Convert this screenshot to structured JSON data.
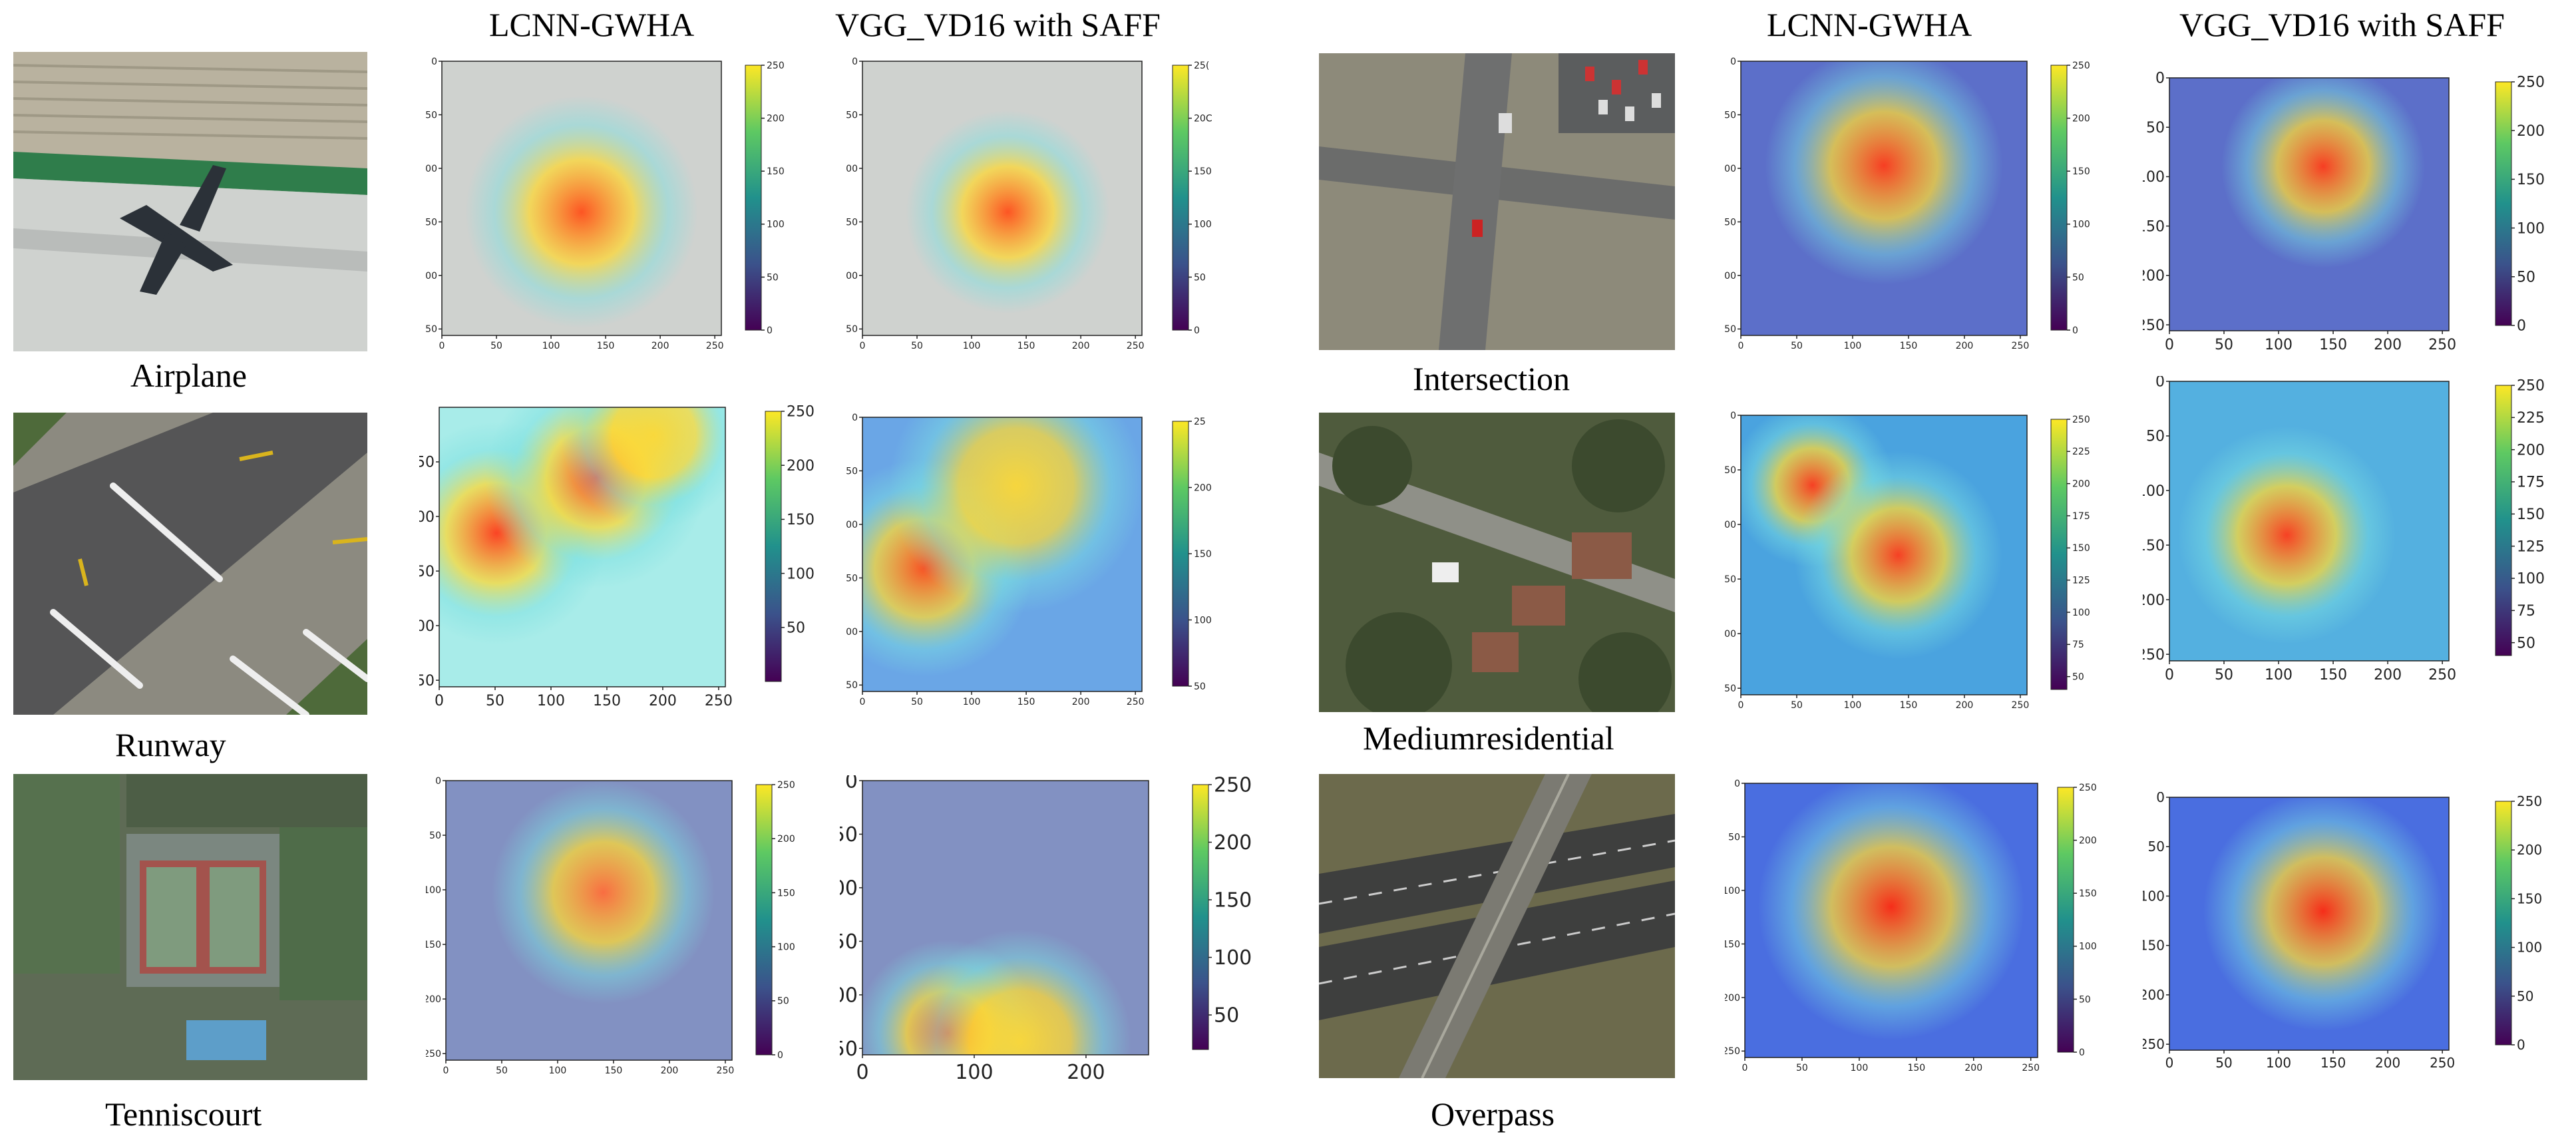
{
  "column_titles": [
    "LCNN-GWHA",
    "VGG_VD16 with SAFF",
    "LCNN-GWHA",
    "VGG_VD16 with SAFF"
  ],
  "class_labels": [
    "Airplane",
    "Intersection",
    "Runway",
    "Mediumresidential",
    "Tenniscourt",
    "Overpass"
  ],
  "axis_ticks": {
    "x_standard": [
      "0",
      "50",
      "100",
      "150",
      "200",
      "250"
    ],
    "x_sparse": [
      "0",
      "100",
      "200"
    ],
    "y_standard": [
      "0",
      "50",
      "100",
      "150",
      "200",
      "250"
    ],
    "y_no_zero": [
      "50",
      "100",
      "150",
      "200",
      "250"
    ]
  },
  "colorbar_ticks": {
    "c0_250": [
      "0",
      "50",
      "100",
      "150",
      "200",
      "250"
    ],
    "c50_250": [
      "50",
      "100",
      "150",
      "200",
      "250"
    ],
    "c50_250_clipped": [
      "50",
      "100",
      "150",
      "200",
      "25"
    ],
    "c0_250_clipped": [
      "0",
      "50",
      "100",
      "150",
      "20C",
      "25("
    ],
    "fine": [
      "50",
      "75",
      "100",
      "125",
      "150",
      "175",
      "200",
      "225",
      "250"
    ]
  },
  "colormap": [
    "#440154",
    "#3b528b",
    "#21918c",
    "#5ec962",
    "#fde725"
  ]
}
